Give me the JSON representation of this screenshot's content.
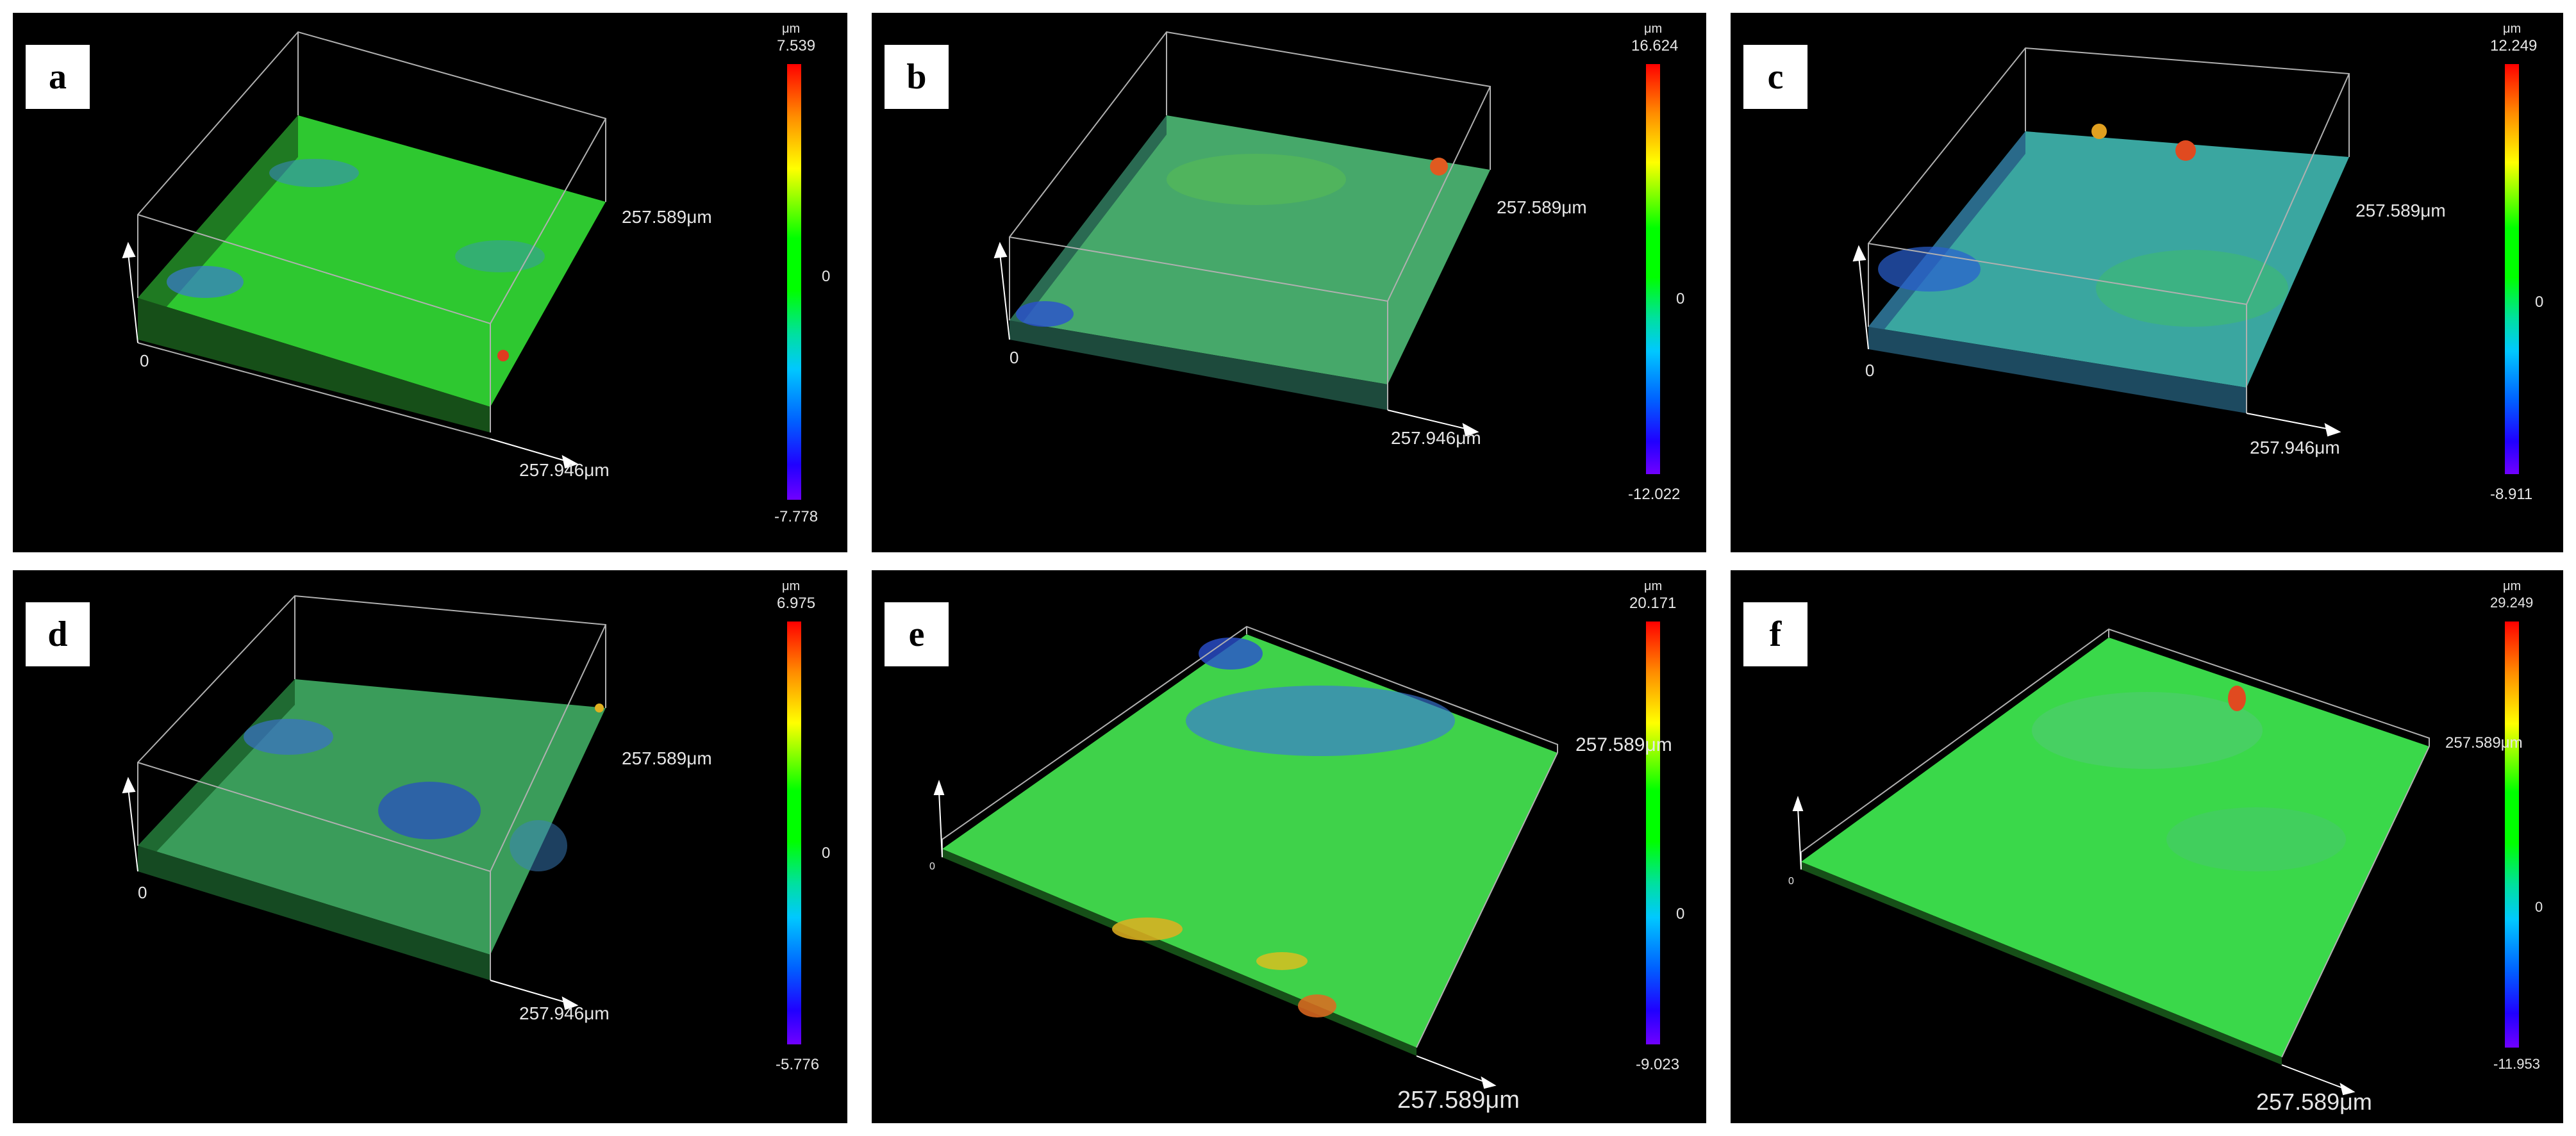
{
  "panels": [
    {
      "letter": "a",
      "scale_unit": "μm",
      "scale_max": "7.539",
      "scale_zero": "0",
      "scale_min": "-7.778",
      "axis_y": "257.589μm",
      "axis_x": "257.946μm",
      "origin": "0",
      "colors": {
        "top": "#2ec830",
        "left": "#1f7a22",
        "front": "#164f18"
      }
    },
    {
      "letter": "b",
      "scale_unit": "μm",
      "scale_max": "16.624",
      "scale_zero": "0",
      "scale_min": "-12.022",
      "axis_y": "257.589μm",
      "axis_x": "257.946μm",
      "origin": "0",
      "colors": {
        "top": "#46a86a",
        "left": "#2a6a52",
        "front": "#1d4a3c"
      }
    },
    {
      "letter": "c",
      "scale_unit": "μm",
      "scale_max": "12.249",
      "scale_zero": "0",
      "scale_min": "-8.911",
      "axis_y": "257.589μm",
      "axis_x": "257.946μm",
      "origin": "0",
      "colors": {
        "top": "#3aa6a0",
        "left": "#2a6a8a",
        "front": "#1d4a60"
      }
    },
    {
      "letter": "d",
      "scale_unit": "μm",
      "scale_max": "6.975",
      "scale_zero": "0",
      "scale_min": "-5.776",
      "axis_y": "257.589μm",
      "axis_x": "257.946μm",
      "origin": "0",
      "colors": {
        "top": "#3a9c5a",
        "left": "#1f6a32",
        "front": "#154a22"
      }
    },
    {
      "letter": "e",
      "scale_unit": "μm",
      "scale_max": "20.171",
      "scale_zero": "0",
      "scale_min": "-9.023",
      "axis_y": "257.589μm",
      "axis_x": "257.589μm",
      "origin": "0",
      "colors": {
        "top": "#3fd24a",
        "left": "#1f7a22",
        "front": "#164f18"
      }
    },
    {
      "letter": "f",
      "scale_unit": "μm",
      "scale_max": "29.249",
      "scale_zero": "0",
      "scale_min": "-11.953",
      "axis_y": "257.589μm",
      "axis_x": "257.589μm",
      "origin": "0",
      "colors": {
        "top": "#3ad84a",
        "left": "#1f7a22",
        "front": "#164f18"
      }
    }
  ]
}
